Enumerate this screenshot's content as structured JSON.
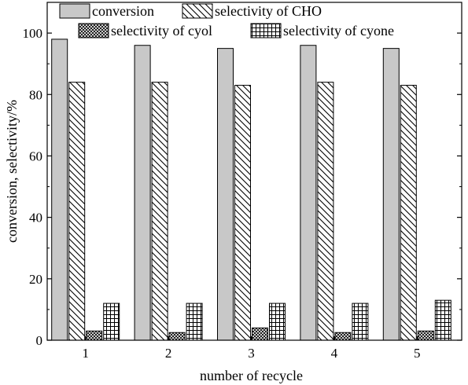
{
  "chart_data": {
    "type": "bar",
    "categories": [
      "1",
      "2",
      "3",
      "4",
      "5"
    ],
    "series": [
      {
        "name": "conversion",
        "values": [
          98,
          96,
          95,
          96,
          95
        ],
        "pattern": "solid-gray"
      },
      {
        "name": "selectivity of CHO",
        "values": [
          84,
          84,
          83,
          84,
          83
        ],
        "pattern": "diagonal-hatch"
      },
      {
        "name": "selectivity of cyol",
        "values": [
          3,
          2.5,
          4,
          2.5,
          3
        ],
        "pattern": "crosshatch"
      },
      {
        "name": "selectivity of cyone",
        "values": [
          12,
          12,
          12,
          12,
          13
        ],
        "pattern": "grid"
      }
    ],
    "xlabel": "number of recycle",
    "ylabel": "conversion, selectivity/%",
    "ylim": [
      0,
      110
    ],
    "yticks": [
      0,
      20,
      40,
      60,
      80,
      100
    ],
    "grid": false,
    "legend": "top"
  },
  "colors": {
    "conversion_fill": "#c8c8c8",
    "stroke": "#000000",
    "background": "#ffffff"
  }
}
